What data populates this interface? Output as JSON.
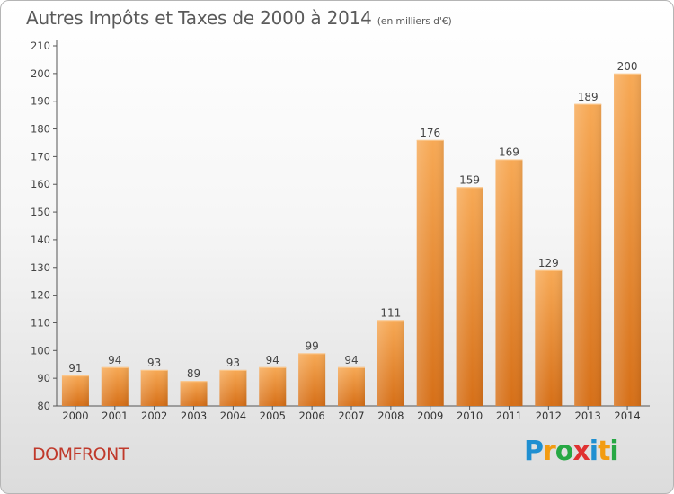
{
  "header": {
    "title": "Autres Impôts et Taxes de 2000 à 2014",
    "unit": "(en milliers d'€)"
  },
  "footer": {
    "commune": "DOMFRONT",
    "logo_letters": [
      "P",
      "r",
      "o",
      "x",
      "i",
      "t",
      "i"
    ],
    "logo_colors": [
      "#1f8fd1",
      "#f39c12",
      "#27a844",
      "#e03131",
      "#1f8fd1",
      "#f39c12",
      "#27a844"
    ]
  },
  "chart_data": {
    "type": "bar",
    "title": "Autres Impôts et Taxes de 2000 à 2014",
    "subtitle": "(en milliers d'€)",
    "xlabel": "",
    "ylabel": "",
    "categories": [
      "2000",
      "2001",
      "2002",
      "2003",
      "2004",
      "2005",
      "2006",
      "2007",
      "2008",
      "2009",
      "2010",
      "2011",
      "2012",
      "2013",
      "2014"
    ],
    "values": [
      91,
      94,
      93,
      89,
      93,
      94,
      99,
      94,
      111,
      176,
      159,
      169,
      129,
      189,
      200
    ],
    "ylim": [
      80,
      210
    ],
    "yticks": [
      80,
      90,
      100,
      110,
      120,
      130,
      140,
      150,
      160,
      170,
      180,
      190,
      200,
      210
    ],
    "grid": false,
    "bar_color": "#f5a04a",
    "bar_color_dark": "#d9741e"
  }
}
